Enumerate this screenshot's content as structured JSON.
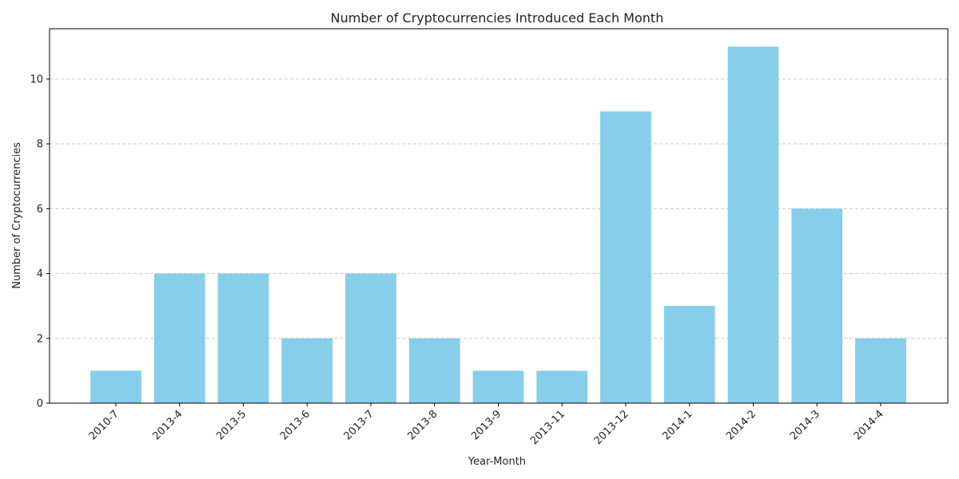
{
  "chart_data": {
    "type": "bar",
    "title": "Number of Cryptocurrencies Introduced Each Month",
    "xlabel": "Year-Month",
    "ylabel": "Number of Cryptocurrencies",
    "categories": [
      "2010-7",
      "2013-4",
      "2013-5",
      "2013-6",
      "2013-7",
      "2013-8",
      "2013-9",
      "2013-11",
      "2013-12",
      "2014-1",
      "2014-2",
      "2014-3",
      "2014-4"
    ],
    "values": [
      1,
      4,
      4,
      2,
      4,
      2,
      1,
      1,
      9,
      3,
      11,
      6,
      2
    ],
    "ylim": [
      0,
      11.55
    ],
    "yticks": [
      0,
      2,
      4,
      6,
      8,
      10
    ],
    "grid": "y-dashed",
    "bar_color": "#87CEEB"
  }
}
